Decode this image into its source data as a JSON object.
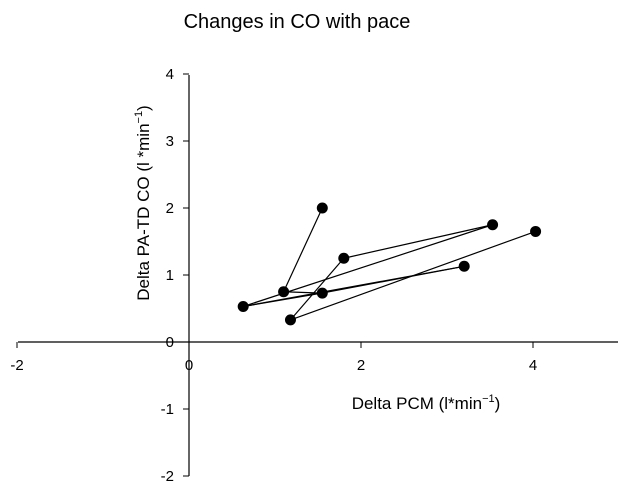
{
  "chart_data": {
    "type": "scatter",
    "title": "Changes in CO with pace",
    "xlabel": "Delta PCM (l*min",
    "xlabel_sup": "−1",
    "xlabel_end": ")",
    "ylabel": "Delta PA-TD CO (l *min",
    "ylabel_sup": "−1",
    "ylabel_end": ")",
    "xlim": [
      -2,
      5
    ],
    "ylim": [
      -2,
      4
    ],
    "xticks": [
      -2,
      0,
      2,
      4
    ],
    "yticks": [
      -2,
      -1,
      0,
      1,
      2,
      3,
      4
    ],
    "xtick_labels": [
      "-2",
      "0",
      "2",
      "4"
    ],
    "ytick_labels": [
      "-2",
      "-1",
      "0",
      "1",
      "2",
      "3",
      "4"
    ],
    "grid": false,
    "marker": "filled-circle",
    "color": "#000000",
    "segments": [
      [
        [
          1.1,
          0.75
        ],
        [
          1.55,
          2.0
        ]
      ],
      [
        [
          1.1,
          0.75
        ],
        [
          1.55,
          0.73
        ]
      ],
      [
        [
          1.55,
          0.73
        ],
        [
          0.63,
          0.53
        ]
      ],
      [
        [
          0.63,
          0.53
        ],
        [
          3.53,
          1.75
        ]
      ],
      [
        [
          3.53,
          1.75
        ],
        [
          1.8,
          1.25
        ]
      ],
      [
        [
          1.8,
          1.25
        ],
        [
          1.18,
          0.33
        ]
      ],
      [
        [
          1.18,
          0.33
        ],
        [
          4.03,
          1.65
        ]
      ],
      [
        [
          0.63,
          0.53
        ],
        [
          3.2,
          1.13
        ]
      ],
      [
        [
          1.55,
          0.73
        ],
        [
          3.2,
          1.13
        ]
      ]
    ],
    "points": [
      {
        "x": 1.55,
        "y": 2.0
      },
      {
        "x": 1.1,
        "y": 0.75
      },
      {
        "x": 1.55,
        "y": 0.73
      },
      {
        "x": 0.63,
        "y": 0.53
      },
      {
        "x": 3.53,
        "y": 1.75
      },
      {
        "x": 1.8,
        "y": 1.25
      },
      {
        "x": 1.18,
        "y": 0.33
      },
      {
        "x": 4.03,
        "y": 1.65
      },
      {
        "x": 3.2,
        "y": 1.13
      }
    ]
  }
}
